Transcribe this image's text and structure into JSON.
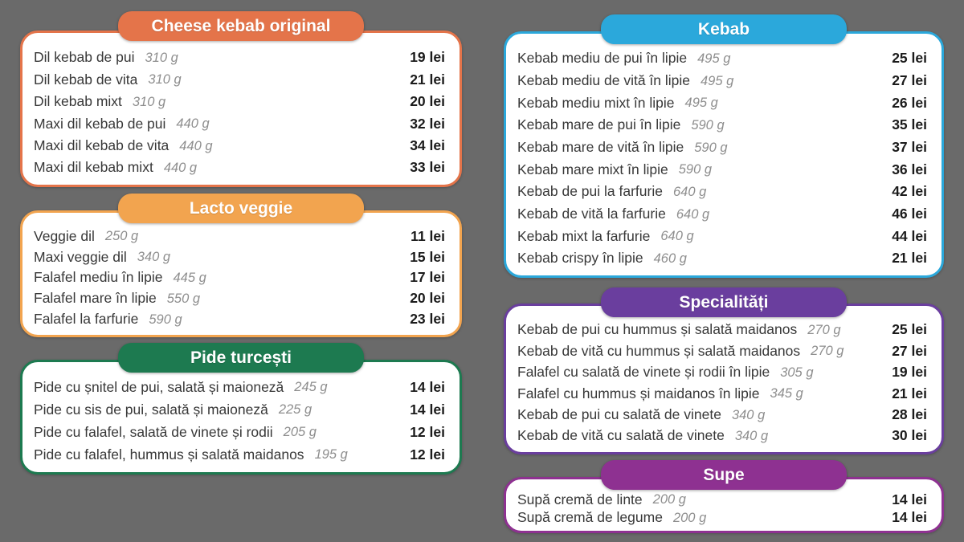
{
  "page": {
    "background_color": "#6a6a6a",
    "currency_suffix": "lei",
    "weight_unit": "g"
  },
  "sections": [
    {
      "id": "cheese-kebab-original",
      "title": "Cheese kebab original",
      "color": "#e4744a",
      "items": [
        {
          "name": "Dil kebab de pui",
          "weight": "310 g",
          "price": "19 lei"
        },
        {
          "name": "Dil kebab de vita",
          "weight": "310 g",
          "price": "21 lei"
        },
        {
          "name": "Dil kebab mixt",
          "weight": "310 g",
          "price": "20 lei"
        },
        {
          "name": "Maxi dil kebab de pui",
          "weight": "440 g",
          "price": "32 lei"
        },
        {
          "name": "Maxi dil kebab de vita",
          "weight": "440 g",
          "price": "34 lei"
        },
        {
          "name": "Maxi dil kebab mixt",
          "weight": "440 g",
          "price": "33 lei"
        }
      ]
    },
    {
      "id": "lacto-veggie",
      "title": "Lacto veggie",
      "color": "#f2a44f",
      "items": [
        {
          "name": "Veggie dil",
          "weight": "250 g",
          "price": "11 lei"
        },
        {
          "name": "Maxi veggie dil",
          "weight": "340 g",
          "price": "15 lei"
        },
        {
          "name": "Falafel mediu în lipie",
          "weight": "445 g",
          "price": "17 lei"
        },
        {
          "name": "Falafel mare în lipie",
          "weight": "550 g",
          "price": "20 lei"
        },
        {
          "name": "Falafel la farfurie",
          "weight": "590 g",
          "price": "23 lei"
        }
      ]
    },
    {
      "id": "pide-turcesti",
      "title": "Pide turcești",
      "color": "#1d7a50",
      "items": [
        {
          "name": "Pide cu șnitel de pui, salată și maioneză",
          "weight": "245 g",
          "price": "14 lei"
        },
        {
          "name": "Pide cu sis de pui, salată și maioneză",
          "weight": "225 g",
          "price": "14 lei"
        },
        {
          "name": "Pide cu falafel, salată de vinete și rodii",
          "weight": "205 g",
          "price": "12 lei"
        },
        {
          "name": "Pide cu falafel, hummus și salată maidanos",
          "weight": "195 g",
          "price": "12 lei"
        }
      ]
    },
    {
      "id": "kebab",
      "title": "Kebab",
      "color": "#2ba8db",
      "items": [
        {
          "name": "Kebab mediu de pui în lipie",
          "weight": "495 g",
          "price": "25 lei"
        },
        {
          "name": "Kebab mediu de vită în lipie",
          "weight": "495 g",
          "price": "27 lei"
        },
        {
          "name": "Kebab mediu mixt în lipie",
          "weight": "495 g",
          "price": "26 lei"
        },
        {
          "name": "Kebab mare de pui în lipie",
          "weight": "590 g",
          "price": "35 lei"
        },
        {
          "name": "Kebab mare de vită în lipie",
          "weight": "590 g",
          "price": "37 lei"
        },
        {
          "name": "Kebab mare mixt în lipie",
          "weight": "590 g",
          "price": "36 lei"
        },
        {
          "name": "Kebab de pui la farfurie",
          "weight": "640 g",
          "price": "42 lei"
        },
        {
          "name": "Kebab de vită la farfurie",
          "weight": "640 g",
          "price": "46 lei"
        },
        {
          "name": "Kebab mixt la farfurie",
          "weight": "640 g",
          "price": "44 lei"
        },
        {
          "name": "Kebab crispy în lipie",
          "weight": "460 g",
          "price": "21 lei"
        }
      ]
    },
    {
      "id": "specialitati",
      "title": "Specialități",
      "color": "#6a3e9e",
      "items": [
        {
          "name": "Kebab de pui cu hummus și salată maidanos",
          "weight": "270 g",
          "price": "25 lei"
        },
        {
          "name": "Kebab de vită cu hummus și salată maidanos",
          "weight": "270 g",
          "price": "27 lei"
        },
        {
          "name": "Falafel cu salată de vinete și rodii în lipie",
          "weight": "305 g",
          "price": "19 lei"
        },
        {
          "name": "Falafel cu hummus și maidanos în lipie",
          "weight": "345 g",
          "price": "21 lei"
        },
        {
          "name": "Kebab de pui cu salată de vinete",
          "weight": "340 g",
          "price": "28 lei"
        },
        {
          "name": "Kebab de vită cu salată de vinete",
          "weight": "340 g",
          "price": "30 lei"
        }
      ]
    },
    {
      "id": "supe",
      "title": "Supe",
      "color": "#8e3191",
      "items": [
        {
          "name": "Supă cremă de linte",
          "weight": "200 g",
          "price": "14 lei"
        },
        {
          "name": "Supă cremă de legume",
          "weight": "200 g",
          "price": "14 lei"
        }
      ]
    }
  ]
}
